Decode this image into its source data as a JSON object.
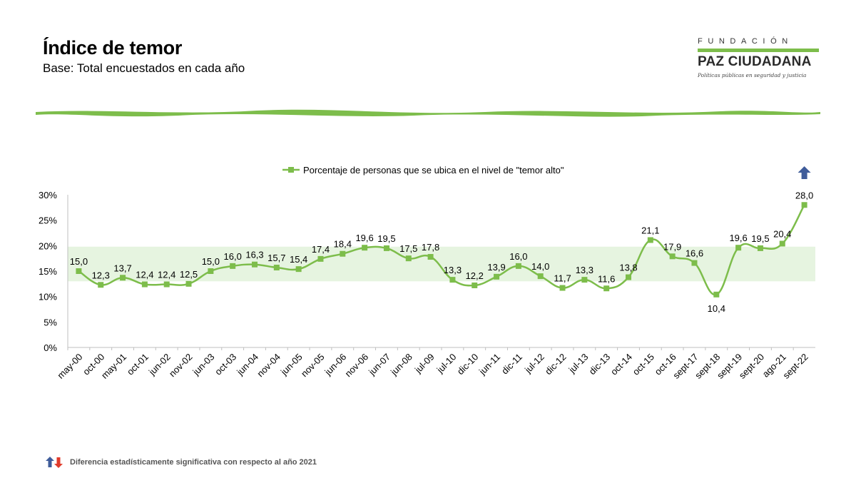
{
  "header": {
    "title": "Índice de temor",
    "subtitle": "Base: Total encuestados en cada año"
  },
  "logo": {
    "line1": "FUNDACIÓN",
    "line2": "PAZ CIUDADANA",
    "tagline": "Políticas públicas en seguridad y justicia"
  },
  "footnote": "Diferencia estadísticamente significativa con respecto al año 2021",
  "colors": {
    "series": "#7dbd4b",
    "band": "#e6f4e0",
    "arrow_up": "#3f5c9a",
    "arrow_down": "#e03b2b"
  },
  "chart_data": {
    "type": "line",
    "categories": [
      "may-00",
      "oct-00",
      "may-01",
      "oct-01",
      "jun-02",
      "nov-02",
      "jun-03",
      "oct-03",
      "jun-04",
      "nov-04",
      "jun-05",
      "nov-05",
      "jun-06",
      "nov-06",
      "jun-07",
      "jun-08",
      "jul-09",
      "jul-10",
      "dic-10",
      "jun-11",
      "dic-11",
      "jul-12",
      "dic-12",
      "jul-13",
      "dic-13",
      "oct-14",
      "oct-15",
      "oct-16",
      "sept-17",
      "sept-18",
      "sept-19",
      "sept-20",
      "ago-21",
      "sept-22"
    ],
    "series": [
      {
        "name": "Porcentaje de personas que se ubica en el nivel de \"temor alto\"",
        "values": [
          15.0,
          12.3,
          13.7,
          12.4,
          12.4,
          12.5,
          15.0,
          16.0,
          16.3,
          15.7,
          15.4,
          17.4,
          18.4,
          19.6,
          19.5,
          17.5,
          17.8,
          13.3,
          12.2,
          13.9,
          16.0,
          14.0,
          11.7,
          13.3,
          11.6,
          13.8,
          21.1,
          17.9,
          16.6,
          10.4,
          19.6,
          19.5,
          20.4,
          28.0
        ],
        "labels": [
          "15,0",
          "12,3",
          "13,7",
          "12,4",
          "12,4",
          "12,5",
          "15,0",
          "16,0",
          "16,3",
          "15,7",
          "15,4",
          "17,4",
          "18,4",
          "19,6",
          "19,5",
          "17,5",
          "17,8",
          "13,3",
          "12,2",
          "13,9",
          "16,0",
          "14,0",
          "11,7",
          "13,3",
          "11,6",
          "13,8",
          "21,1",
          "17,9",
          "16,6",
          "10,4",
          "19,6",
          "19,5",
          "20,4",
          "28,0"
        ],
        "label_below": [
          29
        ],
        "significant_up": [
          33
        ]
      }
    ],
    "yticks": [
      {
        "value": 0,
        "label": "0%"
      },
      {
        "value": 5,
        "label": "5%"
      },
      {
        "value": 10,
        "label": "10%"
      },
      {
        "value": 15,
        "label": "15%"
      },
      {
        "value": 20,
        "label": "20%"
      },
      {
        "value": 25,
        "label": "25%"
      },
      {
        "value": 30,
        "label": "30%"
      }
    ],
    "ylim": [
      0,
      30
    ],
    "band": [
      13,
      19.8
    ],
    "legend_position": "top-center",
    "grid": false
  }
}
